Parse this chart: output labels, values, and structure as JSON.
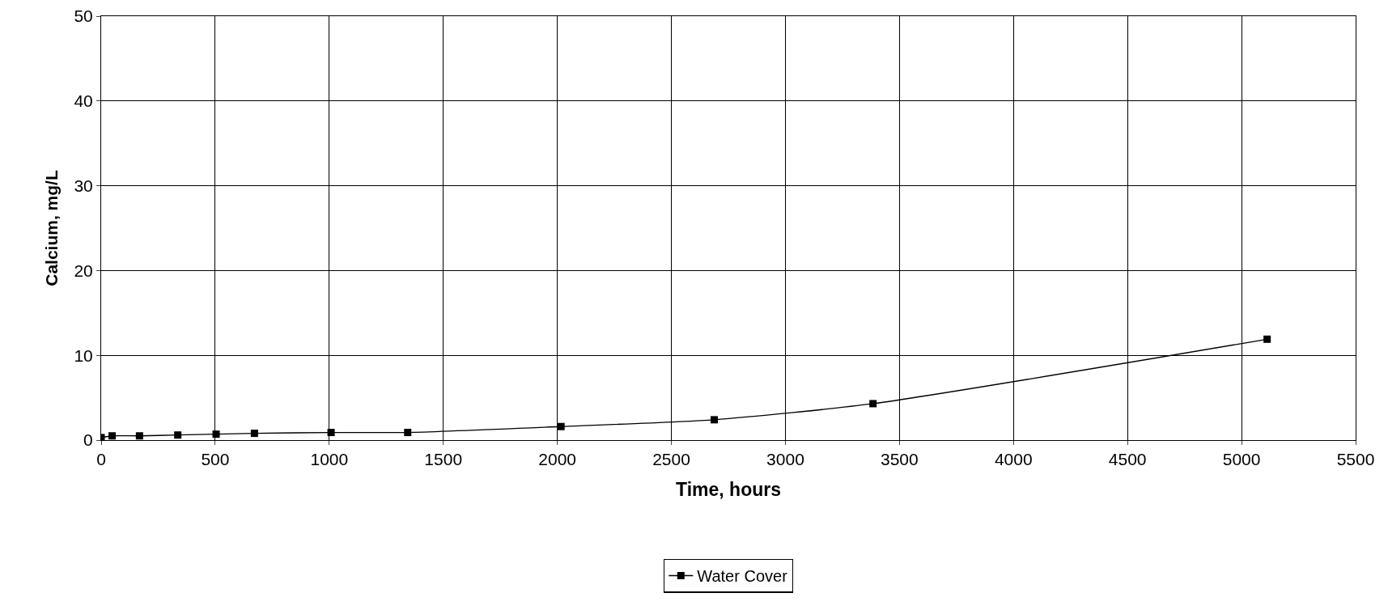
{
  "chart_data": {
    "type": "line",
    "xlabel": "Time, hours",
    "ylabel": "Calcium, mg/L",
    "series": [
      {
        "name": "Water Cover",
        "color": "#000000",
        "x": [
          0,
          48,
          168,
          336,
          504,
          672,
          1008,
          1344,
          2016,
          2688,
          3384,
          5112
        ],
        "values": [
          0.3,
          0.5,
          0.5,
          0.6,
          0.7,
          0.8,
          0.9,
          0.9,
          1.6,
          2.4,
          4.3,
          11.9
        ]
      }
    ],
    "xlim": [
      0,
      5500
    ],
    "xticks": [
      0,
      500,
      1000,
      1500,
      2000,
      2500,
      3000,
      3500,
      4000,
      4500,
      5000,
      5500
    ],
    "ylim": [
      0,
      50
    ],
    "yticks": [
      0,
      10,
      20,
      30,
      40,
      50
    ],
    "grid": true,
    "legend": "bottom",
    "marker": "square",
    "line_style": "solid"
  }
}
